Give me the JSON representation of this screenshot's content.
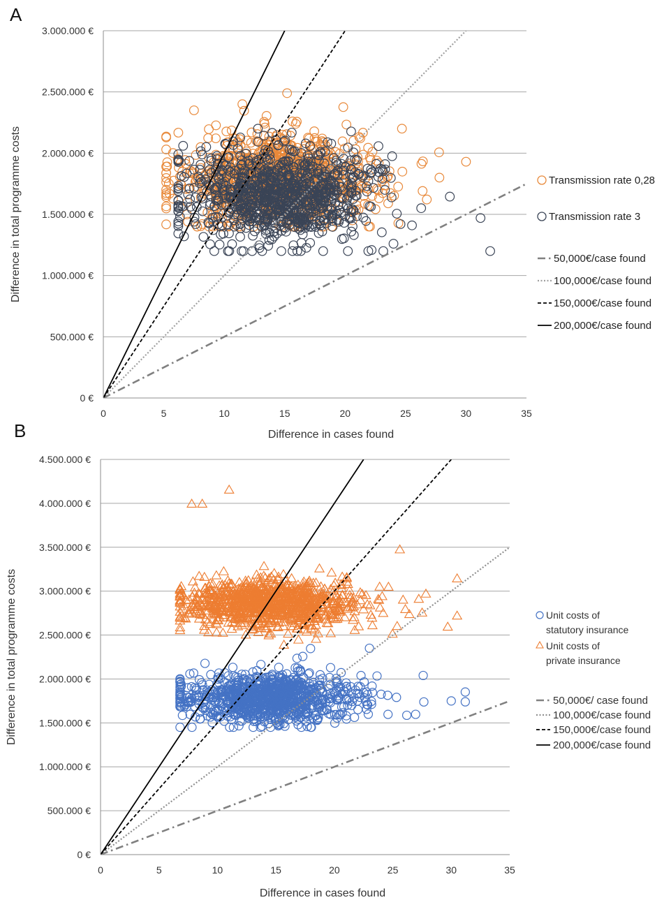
{
  "chart_data": [
    {
      "panel_label": "A",
      "type": "scatter",
      "xlabel": "Difference in cases found",
      "ylabel": "Difference in total programme costs",
      "xlim": [
        0,
        35
      ],
      "ylim": [
        0,
        3000000
      ],
      "x_ticks": [
        0,
        5,
        10,
        15,
        20,
        25,
        30,
        35
      ],
      "y_ticks": [
        0,
        500000,
        1000000,
        1500000,
        2000000,
        2500000,
        3000000
      ],
      "y_tick_labels": [
        "0 €",
        "500.000 €",
        "1.000.000 €",
        "1.500.000 €",
        "2.000.000 €",
        "2.500.000 €",
        "3.000.000 €"
      ],
      "grid": "horizontal",
      "legend_position": "right",
      "series": [
        {
          "name": "Transmission rate 0,28",
          "marker": "circle",
          "color": "#e8893a",
          "n_points": 1000,
          "x_range": [
            5.2,
            30
          ],
          "x_mean": 14.5,
          "y_mean": 1780000,
          "y_range": [
            1400000,
            2490000
          ],
          "highlighted_points": [
            {
              "x": 5.2,
              "y": 2030000
            },
            {
              "x": 7.5,
              "y": 2350000
            },
            {
              "x": 11.5,
              "y": 2400000
            },
            {
              "x": 15.2,
              "y": 2490000
            },
            {
              "x": 24.7,
              "y": 2200000
            },
            {
              "x": 30.0,
              "y": 1930000
            },
            {
              "x": 27.8,
              "y": 1800000
            }
          ]
        },
        {
          "name": "Transmission rate 3",
          "marker": "circle",
          "color": "#3a4456",
          "n_points": 1000,
          "x_range": [
            6.2,
            32
          ],
          "x_mean": 14.5,
          "y_mean": 1650000,
          "y_range": [
            1200000,
            2200000
          ],
          "highlighted_points": [
            {
              "x": 32.0,
              "y": 1200000
            },
            {
              "x": 31.2,
              "y": 1470000
            },
            {
              "x": 24.0,
              "y": 1260000
            },
            {
              "x": 6.6,
              "y": 2060000
            }
          ]
        }
      ],
      "reference_lines": [
        {
          "name": "50,000€/case found",
          "slope": 50000,
          "style": "dashdot",
          "color": "#808080"
        },
        {
          "name": "100,000€/case found",
          "slope": 100000,
          "style": "dotted",
          "color": "#a0a0a0"
        },
        {
          "name": "150,000€/case found",
          "slope": 150000,
          "style": "dashed",
          "color": "#000000"
        },
        {
          "name": "200,000€/case found",
          "slope": 200000,
          "style": "solid",
          "color": "#000000"
        }
      ]
    },
    {
      "panel_label": "B",
      "type": "scatter",
      "xlabel": "Difference in cases found",
      "ylabel": "Difference in total programme costs",
      "xlim": [
        0,
        35
      ],
      "ylim": [
        0,
        4500000
      ],
      "x_ticks": [
        0,
        5,
        10,
        15,
        20,
        25,
        30,
        35
      ],
      "y_ticks": [
        0,
        500000,
        1000000,
        1500000,
        2000000,
        2500000,
        3000000,
        3500000,
        4000000,
        4500000
      ],
      "y_tick_labels": [
        "0 €",
        "500.000 €",
        "1.000.000 €",
        "1.500.000 €",
        "2.000.000 €",
        "2.500.000 €",
        "3.000.000 €",
        "3.500.000 €",
        "4.000.000 €",
        "4.500.000 €"
      ],
      "grid": "horizontal",
      "legend_position": "right",
      "series": [
        {
          "name": "Unit costs of statutory insurance",
          "name_lines": [
            "Unit costs of",
            "statutory insurance"
          ],
          "marker": "circle",
          "color": "#4472c4",
          "n_points": 1000,
          "x_range": [
            6.8,
            31.2
          ],
          "x_mean": 14.5,
          "y_mean": 1780000,
          "y_range": [
            1450000,
            2350000
          ],
          "highlighted_points": [
            {
              "x": 31.2,
              "y": 1740000
            },
            {
              "x": 30.0,
              "y": 1750000
            },
            {
              "x": 27.6,
              "y": 2040000
            },
            {
              "x": 23.0,
              "y": 2350000
            }
          ]
        },
        {
          "name": "Unit costs of private insurance",
          "name_lines": [
            "Unit costs of",
            "private insurance"
          ],
          "marker": "triangle",
          "color": "#ed7d31",
          "n_points": 1000,
          "x_range": [
            6.8,
            30.5
          ],
          "x_mean": 14.5,
          "y_mean": 2850000,
          "y_range": [
            2150000,
            4150000
          ],
          "highlighted_points": [
            {
              "x": 11.0,
              "y": 4150000
            },
            {
              "x": 7.8,
              "y": 3990000
            },
            {
              "x": 8.7,
              "y": 3990000
            },
            {
              "x": 30.5,
              "y": 3140000
            },
            {
              "x": 29.7,
              "y": 2590000
            },
            {
              "x": 25.6,
              "y": 3470000
            }
          ]
        }
      ],
      "reference_lines": [
        {
          "name": "50,000€/ case found",
          "slope": 50000,
          "style": "dashdot",
          "color": "#808080"
        },
        {
          "name": "100,000€/case found",
          "slope": 100000,
          "style": "dotted",
          "color": "#909090"
        },
        {
          "name": "150,000€/case found",
          "slope": 150000,
          "style": "dashed",
          "color": "#000000"
        },
        {
          "name": "200,000€/case found",
          "slope": 200000,
          "style": "solid",
          "color": "#000000"
        }
      ]
    }
  ]
}
